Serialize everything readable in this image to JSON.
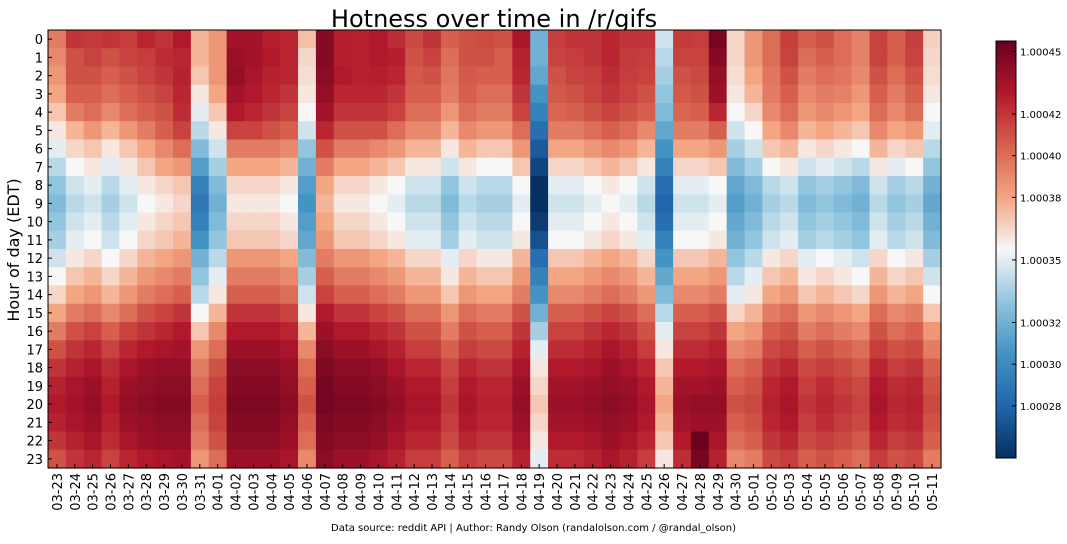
{
  "chart_data": {
    "type": "heatmap",
    "title": "Hotness over time in /r/gifs",
    "ylabel": "Hour of day (EDT)",
    "xlabel": "",
    "x": [
      "03-23",
      "03-24",
      "03-25",
      "03-26",
      "03-27",
      "03-28",
      "03-29",
      "03-30",
      "03-31",
      "04-01",
      "04-02",
      "04-03",
      "04-04",
      "04-05",
      "04-06",
      "04-07",
      "04-08",
      "04-09",
      "04-10",
      "04-11",
      "04-12",
      "04-13",
      "04-14",
      "04-15",
      "04-16",
      "04-17",
      "04-18",
      "04-19",
      "04-20",
      "04-21",
      "04-22",
      "04-23",
      "04-24",
      "04-25",
      "04-26",
      "04-27",
      "04-28",
      "04-29",
      "04-30",
      "05-01",
      "05-02",
      "05-03",
      "05-04",
      "05-05",
      "05-06",
      "05-07",
      "05-08",
      "05-09",
      "05-10",
      "05-11"
    ],
    "y": [
      "0",
      "1",
      "2",
      "3",
      "4",
      "5",
      "6",
      "7",
      "8",
      "9",
      "10",
      "11",
      "12",
      "13",
      "14",
      "15",
      "16",
      "17",
      "18",
      "19",
      "20",
      "21",
      "22",
      "23"
    ],
    "values": [
      [
        0.4,
        0.65,
        0.63,
        0.65,
        0.62,
        0.7,
        0.65,
        0.75,
        0.2,
        0.3,
        0.8,
        0.8,
        0.73,
        0.7,
        0.17,
        0.9,
        0.73,
        0.72,
        0.75,
        0.68,
        0.58,
        0.65,
        0.5,
        0.55,
        0.57,
        0.55,
        0.78,
        -0.35,
        0.62,
        0.65,
        0.65,
        0.7,
        0.65,
        0.65,
        -0.1,
        0.63,
        0.62,
        0.95,
        0.1,
        0.3,
        0.45,
        0.62,
        0.5,
        0.55,
        0.45,
        0.38,
        0.6,
        0.5,
        0.62,
        0.12
      ],
      [
        0.35,
        0.55,
        0.6,
        0.55,
        0.6,
        0.62,
        0.68,
        0.7,
        0.2,
        0.3,
        0.83,
        0.8,
        0.75,
        0.7,
        0.1,
        0.9,
        0.73,
        0.72,
        0.75,
        0.73,
        0.55,
        0.6,
        0.45,
        0.55,
        0.55,
        0.5,
        0.72,
        -0.35,
        0.6,
        0.62,
        0.65,
        0.7,
        0.63,
        0.62,
        -0.15,
        0.6,
        0.6,
        0.9,
        0.1,
        0.3,
        0.45,
        0.6,
        0.45,
        0.5,
        0.45,
        0.38,
        0.6,
        0.5,
        0.6,
        0.1
      ],
      [
        0.3,
        0.55,
        0.55,
        0.5,
        0.55,
        0.6,
        0.65,
        0.72,
        0.15,
        0.3,
        0.85,
        0.78,
        0.72,
        0.7,
        0.08,
        0.88,
        0.75,
        0.72,
        0.73,
        0.7,
        0.52,
        0.55,
        0.42,
        0.52,
        0.5,
        0.5,
        0.7,
        -0.4,
        0.55,
        0.6,
        0.62,
        0.68,
        0.62,
        0.6,
        -0.2,
        0.55,
        0.58,
        0.85,
        0.08,
        0.25,
        0.42,
        0.55,
        0.4,
        0.45,
        0.42,
        0.35,
        0.55,
        0.45,
        0.55,
        0.08
      ],
      [
        0.25,
        0.5,
        0.5,
        0.45,
        0.5,
        0.55,
        0.6,
        0.7,
        0.05,
        0.25,
        0.8,
        0.75,
        0.7,
        0.65,
        0.05,
        0.85,
        0.7,
        0.7,
        0.7,
        0.65,
        0.5,
        0.5,
        0.4,
        0.5,
        0.45,
        0.45,
        0.65,
        -0.5,
        0.52,
        0.55,
        0.6,
        0.65,
        0.6,
        0.55,
        -0.25,
        0.52,
        0.55,
        0.82,
        0.05,
        0.2,
        0.4,
        0.5,
        0.35,
        0.4,
        0.38,
        0.3,
        0.5,
        0.4,
        0.5,
        0.05
      ],
      [
        0.15,
        0.4,
        0.45,
        0.35,
        0.45,
        0.5,
        0.55,
        0.68,
        -0.05,
        0.15,
        0.75,
        0.7,
        0.65,
        0.6,
        0.0,
        0.8,
        0.65,
        0.65,
        0.65,
        0.6,
        0.45,
        0.45,
        0.3,
        0.45,
        0.4,
        0.4,
        0.6,
        -0.6,
        0.48,
        0.5,
        0.55,
        0.6,
        0.55,
        0.5,
        -0.3,
        0.48,
        0.5,
        0.7,
        0.0,
        0.1,
        0.35,
        0.45,
        0.3,
        0.35,
        0.3,
        0.25,
        0.45,
        0.35,
        0.45,
        0.0
      ],
      [
        0.05,
        0.2,
        0.3,
        0.2,
        0.3,
        0.4,
        0.5,
        0.6,
        -0.15,
        0.05,
        0.6,
        0.6,
        0.55,
        0.5,
        -0.1,
        0.7,
        0.55,
        0.55,
        0.55,
        0.45,
        0.35,
        0.35,
        0.2,
        0.35,
        0.3,
        0.3,
        0.45,
        -0.7,
        0.4,
        0.4,
        0.45,
        0.5,
        0.45,
        0.35,
        -0.4,
        0.4,
        0.4,
        0.5,
        -0.1,
        0.0,
        0.25,
        0.35,
        0.2,
        0.25,
        0.2,
        0.15,
        0.35,
        0.25,
        0.3,
        -0.05
      ],
      [
        -0.05,
        0.1,
        0.15,
        0.05,
        0.15,
        0.25,
        0.35,
        0.45,
        -0.3,
        -0.1,
        0.4,
        0.4,
        0.4,
        0.35,
        -0.25,
        0.55,
        0.4,
        0.4,
        0.35,
        0.3,
        0.2,
        0.2,
        0.05,
        0.2,
        0.15,
        0.15,
        0.3,
        -0.8,
        0.25,
        0.25,
        0.3,
        0.35,
        0.3,
        0.2,
        -0.5,
        0.25,
        0.25,
        0.3,
        -0.2,
        -0.1,
        0.15,
        0.2,
        0.05,
        0.1,
        0.05,
        0.0,
        0.2,
        0.1,
        0.15,
        -0.15
      ],
      [
        -0.15,
        0.0,
        0.05,
        -0.05,
        0.05,
        0.15,
        0.25,
        0.3,
        -0.45,
        -0.2,
        0.25,
        0.25,
        0.25,
        0.2,
        -0.35,
        0.4,
        0.25,
        0.25,
        0.2,
        0.15,
        0.05,
        0.05,
        -0.1,
        0.05,
        0.0,
        0.0,
        0.15,
        -0.9,
        0.1,
        0.1,
        0.15,
        0.2,
        0.15,
        0.05,
        -0.6,
        0.1,
        0.1,
        0.15,
        -0.3,
        -0.2,
        0.0,
        0.05,
        -0.1,
        -0.05,
        -0.1,
        -0.15,
        0.05,
        -0.05,
        0.0,
        -0.25
      ],
      [
        -0.25,
        -0.1,
        -0.05,
        -0.15,
        -0.05,
        0.05,
        0.1,
        0.15,
        -0.6,
        -0.3,
        0.1,
        0.1,
        0.1,
        0.05,
        -0.45,
        0.25,
        0.1,
        0.1,
        0.05,
        0.0,
        -0.1,
        -0.1,
        -0.25,
        -0.1,
        -0.15,
        -0.15,
        0.0,
        -1.0,
        -0.05,
        -0.05,
        0.0,
        0.05,
        0.0,
        -0.1,
        -0.7,
        -0.05,
        -0.05,
        0.0,
        -0.4,
        -0.3,
        -0.15,
        -0.1,
        -0.25,
        -0.2,
        -0.25,
        -0.3,
        -0.1,
        -0.2,
        -0.15,
        -0.35
      ],
      [
        -0.3,
        -0.15,
        -0.1,
        -0.2,
        -0.1,
        0.0,
        0.05,
        0.1,
        -0.65,
        -0.35,
        0.05,
        0.05,
        0.05,
        0.0,
        -0.5,
        0.2,
        0.05,
        0.05,
        0.0,
        -0.05,
        -0.15,
        -0.15,
        -0.3,
        -0.15,
        -0.2,
        -0.2,
        -0.05,
        -1.0,
        -0.1,
        -0.1,
        -0.05,
        0.0,
        -0.05,
        -0.15,
        -0.75,
        -0.1,
        -0.1,
        -0.05,
        -0.45,
        -0.35,
        -0.2,
        -0.15,
        -0.3,
        -0.25,
        -0.3,
        -0.35,
        -0.15,
        -0.25,
        -0.2,
        -0.4
      ],
      [
        -0.25,
        -0.1,
        -0.05,
        -0.15,
        -0.05,
        0.05,
        0.1,
        0.15,
        -0.6,
        -0.3,
        0.1,
        0.1,
        0.1,
        0.05,
        -0.45,
        0.25,
        0.1,
        0.1,
        0.05,
        0.0,
        -0.1,
        -0.1,
        -0.25,
        -0.1,
        -0.15,
        -0.15,
        0.0,
        -0.95,
        -0.05,
        -0.05,
        0.0,
        0.05,
        0.0,
        -0.1,
        -0.7,
        -0.05,
        -0.05,
        0.0,
        -0.4,
        -0.3,
        -0.15,
        -0.1,
        -0.25,
        -0.2,
        -0.25,
        -0.3,
        -0.1,
        -0.2,
        -0.15,
        -0.35
      ],
      [
        -0.2,
        -0.05,
        0.0,
        -0.1,
        0.0,
        0.1,
        0.15,
        0.2,
        -0.5,
        -0.25,
        0.15,
        0.15,
        0.15,
        0.1,
        -0.4,
        0.3,
        0.15,
        0.15,
        0.1,
        0.05,
        -0.05,
        -0.05,
        -0.2,
        -0.05,
        -0.1,
        -0.1,
        0.05,
        -0.85,
        0.0,
        0.0,
        0.05,
        0.1,
        0.05,
        -0.05,
        -0.6,
        0.0,
        0.0,
        0.05,
        -0.35,
        -0.25,
        -0.1,
        -0.05,
        -0.2,
        -0.15,
        -0.2,
        -0.25,
        -0.05,
        -0.15,
        -0.1,
        -0.3
      ],
      [
        -0.1,
        0.05,
        0.1,
        0.0,
        0.1,
        0.2,
        0.25,
        0.3,
        -0.35,
        -0.15,
        0.3,
        0.3,
        0.3,
        0.25,
        -0.3,
        0.4,
        0.3,
        0.3,
        0.25,
        0.2,
        0.1,
        0.1,
        -0.05,
        0.1,
        0.05,
        0.05,
        0.2,
        -0.7,
        0.15,
        0.15,
        0.2,
        0.25,
        0.2,
        0.1,
        -0.5,
        0.15,
        0.15,
        0.2,
        -0.25,
        -0.15,
        0.05,
        0.1,
        -0.05,
        0.0,
        -0.05,
        -0.1,
        0.1,
        0.0,
        0.05,
        -0.2
      ],
      [
        0.0,
        0.15,
        0.2,
        0.1,
        0.2,
        0.3,
        0.35,
        0.4,
        -0.25,
        -0.05,
        0.4,
        0.4,
        0.4,
        0.35,
        -0.2,
        0.5,
        0.4,
        0.4,
        0.35,
        0.3,
        0.2,
        0.2,
        0.05,
        0.2,
        0.15,
        0.15,
        0.3,
        -0.6,
        0.25,
        0.25,
        0.3,
        0.35,
        0.3,
        0.2,
        -0.4,
        0.25,
        0.25,
        0.3,
        -0.15,
        -0.05,
        0.15,
        0.2,
        0.05,
        0.1,
        0.05,
        0.0,
        0.2,
        0.1,
        0.15,
        -0.1
      ],
      [
        0.1,
        0.25,
        0.3,
        0.2,
        0.3,
        0.4,
        0.45,
        0.5,
        -0.15,
        0.05,
        0.5,
        0.5,
        0.5,
        0.45,
        -0.1,
        0.6,
        0.5,
        0.5,
        0.45,
        0.4,
        0.3,
        0.3,
        0.15,
        0.3,
        0.25,
        0.25,
        0.4,
        -0.5,
        0.35,
        0.35,
        0.4,
        0.45,
        0.4,
        0.3,
        -0.3,
        0.35,
        0.35,
        0.4,
        -0.05,
        0.05,
        0.25,
        0.3,
        0.15,
        0.2,
        0.15,
        0.1,
        0.3,
        0.2,
        0.25,
        0.0
      ],
      [
        0.25,
        0.4,
        0.45,
        0.35,
        0.45,
        0.55,
        0.6,
        0.65,
        0.0,
        0.2,
        0.65,
        0.65,
        0.65,
        0.6,
        0.05,
        0.75,
        0.65,
        0.65,
        0.6,
        0.55,
        0.45,
        0.45,
        0.3,
        0.45,
        0.4,
        0.4,
        0.55,
        -0.35,
        0.5,
        0.5,
        0.55,
        0.6,
        0.55,
        0.45,
        -0.15,
        0.5,
        0.5,
        0.55,
        0.1,
        0.2,
        0.4,
        0.45,
        0.3,
        0.35,
        0.3,
        0.25,
        0.45,
        0.35,
        0.4,
        0.15
      ],
      [
        0.4,
        0.55,
        0.6,
        0.5,
        0.6,
        0.65,
        0.7,
        0.75,
        0.15,
        0.35,
        0.75,
        0.75,
        0.75,
        0.7,
        0.2,
        0.82,
        0.75,
        0.75,
        0.7,
        0.65,
        0.55,
        0.55,
        0.4,
        0.55,
        0.5,
        0.5,
        0.65,
        -0.2,
        0.6,
        0.6,
        0.65,
        0.7,
        0.65,
        0.55,
        -0.05,
        0.6,
        0.6,
        0.65,
        0.25,
        0.3,
        0.5,
        0.55,
        0.4,
        0.45,
        0.4,
        0.35,
        0.55,
        0.45,
        0.5,
        0.3
      ],
      [
        0.55,
        0.65,
        0.7,
        0.6,
        0.7,
        0.75,
        0.78,
        0.8,
        0.3,
        0.45,
        0.82,
        0.82,
        0.82,
        0.78,
        0.35,
        0.88,
        0.82,
        0.82,
        0.78,
        0.72,
        0.62,
        0.62,
        0.5,
        0.62,
        0.58,
        0.58,
        0.72,
        -0.05,
        0.68,
        0.68,
        0.72,
        0.78,
        0.72,
        0.62,
        0.05,
        0.68,
        0.68,
        0.72,
        0.35,
        0.4,
        0.58,
        0.62,
        0.5,
        0.55,
        0.5,
        0.45,
        0.62,
        0.55,
        0.58,
        0.4
      ],
      [
        0.65,
        0.72,
        0.78,
        0.68,
        0.78,
        0.82,
        0.85,
        0.85,
        0.4,
        0.55,
        0.88,
        0.88,
        0.88,
        0.82,
        0.45,
        0.92,
        0.88,
        0.88,
        0.85,
        0.78,
        0.7,
        0.7,
        0.58,
        0.7,
        0.65,
        0.65,
        0.78,
        0.05,
        0.75,
        0.75,
        0.78,
        0.82,
        0.78,
        0.7,
        0.15,
        0.75,
        0.75,
        0.78,
        0.45,
        0.5,
        0.65,
        0.7,
        0.58,
        0.62,
        0.58,
        0.52,
        0.7,
        0.62,
        0.65,
        0.5
      ],
      [
        0.72,
        0.78,
        0.82,
        0.72,
        0.82,
        0.85,
        0.88,
        0.88,
        0.45,
        0.6,
        0.9,
        0.9,
        0.9,
        0.85,
        0.5,
        0.95,
        0.9,
        0.9,
        0.88,
        0.82,
        0.75,
        0.75,
        0.62,
        0.75,
        0.7,
        0.7,
        0.82,
        0.1,
        0.8,
        0.8,
        0.82,
        0.85,
        0.82,
        0.75,
        0.2,
        0.8,
        0.8,
        0.82,
        0.5,
        0.55,
        0.7,
        0.75,
        0.62,
        0.68,
        0.62,
        0.58,
        0.75,
        0.68,
        0.7,
        0.55
      ],
      [
        0.75,
        0.8,
        0.85,
        0.75,
        0.85,
        0.88,
        0.9,
        0.9,
        0.5,
        0.62,
        0.92,
        0.92,
        0.92,
        0.88,
        0.55,
        0.95,
        0.92,
        0.92,
        0.9,
        0.85,
        0.78,
        0.78,
        0.65,
        0.78,
        0.72,
        0.72,
        0.85,
        0.15,
        0.82,
        0.82,
        0.85,
        0.88,
        0.85,
        0.78,
        0.25,
        0.82,
        0.85,
        0.85,
        0.55,
        0.58,
        0.72,
        0.78,
        0.65,
        0.7,
        0.65,
        0.6,
        0.78,
        0.7,
        0.72,
        0.58
      ],
      [
        0.72,
        0.78,
        0.82,
        0.72,
        0.82,
        0.85,
        0.88,
        0.88,
        0.45,
        0.6,
        0.9,
        0.9,
        0.9,
        0.85,
        0.5,
        0.92,
        0.9,
        0.9,
        0.88,
        0.82,
        0.75,
        0.75,
        0.62,
        0.75,
        0.7,
        0.7,
        0.82,
        0.1,
        0.8,
        0.8,
        0.82,
        0.85,
        0.82,
        0.75,
        0.2,
        0.8,
        0.82,
        0.82,
        0.5,
        0.55,
        0.7,
        0.75,
        0.62,
        0.68,
        0.62,
        0.58,
        0.75,
        0.68,
        0.7,
        0.55
      ],
      [
        0.65,
        0.72,
        0.78,
        0.68,
        0.78,
        0.82,
        0.85,
        0.85,
        0.4,
        0.55,
        0.88,
        0.88,
        0.88,
        0.82,
        0.45,
        0.9,
        0.88,
        0.88,
        0.85,
        0.78,
        0.7,
        0.7,
        0.58,
        0.7,
        0.65,
        0.65,
        0.78,
        0.05,
        0.75,
        0.75,
        0.78,
        0.82,
        0.78,
        0.7,
        0.15,
        0.75,
        0.98,
        0.78,
        0.45,
        0.5,
        0.65,
        0.7,
        0.58,
        0.62,
        0.58,
        0.52,
        0.7,
        0.62,
        0.65,
        0.5
      ],
      [
        0.55,
        0.65,
        0.7,
        0.6,
        0.7,
        0.75,
        0.78,
        0.8,
        0.3,
        0.45,
        0.82,
        0.82,
        0.82,
        0.78,
        0.35,
        0.88,
        0.82,
        0.82,
        0.78,
        0.72,
        0.62,
        0.62,
        0.5,
        0.62,
        0.58,
        0.58,
        0.72,
        -0.05,
        0.68,
        0.68,
        0.72,
        0.78,
        0.72,
        0.62,
        0.05,
        0.68,
        0.95,
        0.72,
        0.35,
        0.4,
        0.58,
        0.62,
        0.5,
        0.55,
        0.5,
        0.45,
        0.62,
        0.55,
        0.58,
        0.4
      ]
    ],
    "value_range": [
      -1,
      1
    ],
    "colorbar": {
      "ticks": [
        "1.00028",
        "1.00030",
        "1.00032",
        "1.00035",
        "1.00038",
        "1.00040",
        "1.00042",
        "1.00045"
      ],
      "min": 1.000255,
      "max": 1.000455,
      "colormap": "RdBu_r"
    },
    "grid": false,
    "legend": "colorbar-right"
  },
  "footer": {
    "source": "Data source: reddit API | Author: Randy Olson (randalolson.com / @randal_olson)"
  }
}
